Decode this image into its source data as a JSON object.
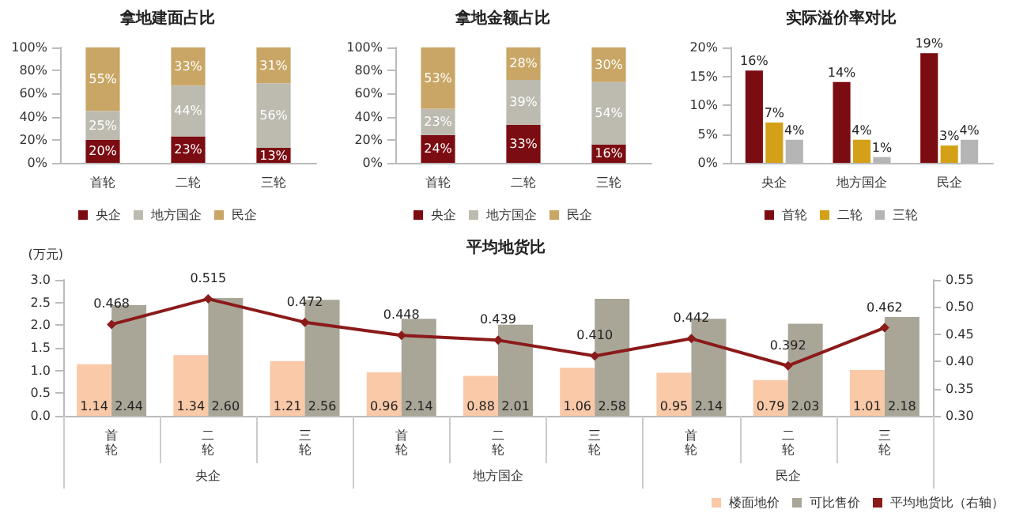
{
  "chart_data": [
    {
      "type": "bar",
      "title": "拿地建面占比",
      "stacked": true,
      "categories": [
        "首轮",
        "二轮",
        "三轮"
      ],
      "series": [
        {
          "name": "央企",
          "color": "#7b0c12",
          "values": [
            20,
            23,
            13
          ],
          "value_labels": [
            "20%",
            "23%",
            "13%"
          ]
        },
        {
          "name": "地方国企",
          "color": "#bdbbb0",
          "values": [
            25,
            44,
            56
          ],
          "value_labels": [
            "25%",
            "44%",
            "56%"
          ]
        },
        {
          "name": "民企",
          "color": "#c9a665",
          "values": [
            55,
            33,
            31
          ],
          "value_labels": [
            "55%",
            "33%",
            "31%"
          ]
        }
      ],
      "ylim": [
        0,
        100
      ],
      "yticks": [
        {
          "value": 0,
          "label": "0%"
        },
        {
          "value": 20,
          "label": "20%"
        },
        {
          "value": 40,
          "label": "40%"
        },
        {
          "value": 60,
          "label": "60%"
        },
        {
          "value": 80,
          "label": "80%"
        },
        {
          "value": 100,
          "label": "100%"
        }
      ],
      "grid": false,
      "legend": "bottom"
    },
    {
      "type": "bar",
      "title": "拿地金额占比",
      "stacked": true,
      "categories": [
        "首轮",
        "二轮",
        "三轮"
      ],
      "series": [
        {
          "name": "央企",
          "color": "#7b0c12",
          "values": [
            24,
            33,
            16
          ],
          "value_labels": [
            "24%",
            "33%",
            "16%"
          ]
        },
        {
          "name": "地方国企",
          "color": "#bdbbb0",
          "values": [
            23,
            39,
            54
          ],
          "value_labels": [
            "23%",
            "39%",
            "54%"
          ]
        },
        {
          "name": "民企",
          "color": "#c9a665",
          "values": [
            53,
            28,
            30
          ],
          "value_labels": [
            "53%",
            "28%",
            "30%"
          ]
        }
      ],
      "ylim": [
        0,
        100
      ],
      "yticks": [
        {
          "value": 0,
          "label": "0%"
        },
        {
          "value": 20,
          "label": "20%"
        },
        {
          "value": 40,
          "label": "40%"
        },
        {
          "value": 60,
          "label": "60%"
        },
        {
          "value": 80,
          "label": "80%"
        },
        {
          "value": 100,
          "label": "100%"
        }
      ],
      "grid": false,
      "legend": "bottom"
    },
    {
      "type": "bar",
      "title": "实际溢价率对比",
      "categories": [
        "央企",
        "地方国企",
        "民企"
      ],
      "series": [
        {
          "name": "首轮",
          "color": "#7b0c12",
          "values": [
            16,
            14,
            19
          ],
          "value_labels": [
            "16%",
            "14%",
            "19%"
          ]
        },
        {
          "name": "二轮",
          "color": "#d4a017",
          "values": [
            7,
            4,
            3
          ],
          "value_labels": [
            "7%",
            "4%",
            "3%"
          ]
        },
        {
          "name": "三轮",
          "color": "#b5b5b5",
          "values": [
            4,
            1,
            4
          ],
          "value_labels": [
            "4%",
            "1%",
            "4%"
          ]
        }
      ],
      "ylim": [
        0,
        20
      ],
      "yticks": [
        {
          "value": 0,
          "label": "0%"
        },
        {
          "value": 5,
          "label": "5%"
        },
        {
          "value": 10,
          "label": "10%"
        },
        {
          "value": 15,
          "label": "15%"
        },
        {
          "value": 20,
          "label": "20%"
        }
      ],
      "grid": false,
      "legend": "bottom"
    },
    {
      "type": "bar",
      "title": "平均地货比",
      "ylabel": "(万元)",
      "categories": [
        "首轮",
        "二轮",
        "三轮",
        "首轮",
        "二轮",
        "三轮",
        "首轮",
        "二轮",
        "三轮"
      ],
      "annotations": [
        "央企",
        "地方国企",
        "民企"
      ],
      "series": [
        {
          "name": "楼面地价",
          "color": "#f9c9a8",
          "values": [
            1.14,
            1.34,
            1.21,
            0.96,
            0.88,
            1.06,
            0.95,
            0.79,
            1.01
          ],
          "value_labels": [
            "1.14",
            "1.34",
            "1.21",
            "0.96",
            "0.88",
            "1.06",
            "0.95",
            "0.79",
            "1.01"
          ]
        },
        {
          "name": "可比售价",
          "color": "#a9a698",
          "values": [
            2.44,
            2.6,
            2.56,
            2.14,
            2.01,
            2.58,
            2.14,
            2.03,
            2.18
          ],
          "value_labels": [
            "2.44",
            "2.60",
            "2.56",
            "2.14",
            "2.01",
            "2.58",
            "2.14",
            "2.03",
            "2.18"
          ]
        },
        {
          "name": "平均地货比（右轴）",
          "type": "line",
          "axis": "y2",
          "color": "#8b1a1a",
          "values": [
            0.468,
            0.515,
            0.472,
            0.448,
            0.439,
            0.41,
            0.442,
            0.392,
            0.462
          ],
          "value_labels": [
            "0.468",
            "0.515",
            "0.472",
            "0.448",
            "0.439",
            "0.410",
            "0.442",
            "0.392",
            "0.462"
          ]
        }
      ],
      "ylim": [
        0,
        3
      ],
      "yticks": [
        {
          "value": 0,
          "label": "0.0"
        },
        {
          "value": 0.5,
          "label": "0.5"
        },
        {
          "value": 1,
          "label": "1.0"
        },
        {
          "value": 1.5,
          "label": "1.5"
        },
        {
          "value": 2,
          "label": "2.0"
        },
        {
          "value": 2.5,
          "label": "2.5"
        },
        {
          "value": 3,
          "label": "3.0"
        }
      ],
      "y2lim": [
        0.3,
        0.55
      ],
      "y2ticks": [
        {
          "value": 0.3,
          "label": "0.30"
        },
        {
          "value": 0.35,
          "label": "0.35"
        },
        {
          "value": 0.4,
          "label": "0.40"
        },
        {
          "value": 0.45,
          "label": "0.45"
        },
        {
          "value": 0.5,
          "label": "0.50"
        },
        {
          "value": 0.55,
          "label": "0.55"
        }
      ],
      "grid": false,
      "legend": "bottom",
      "marker": "diamond",
      "line_style": "solid"
    }
  ]
}
